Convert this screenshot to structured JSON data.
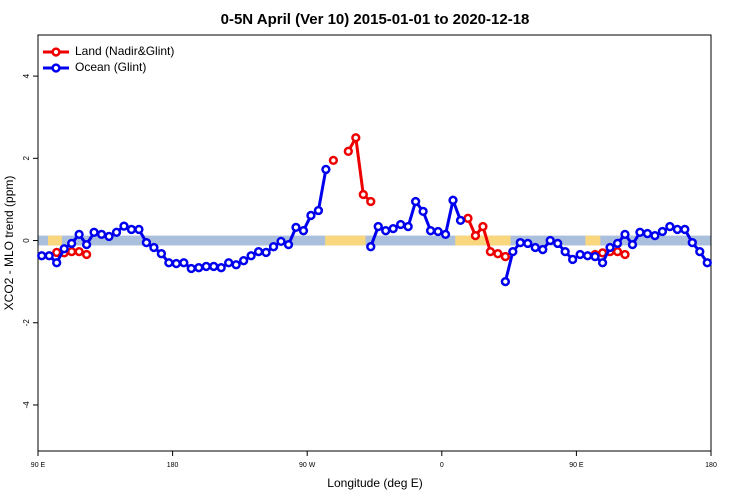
{
  "chart_data": {
    "type": "line",
    "title": "0-5N April (Ver 10)   2015-01-01 to 2020-12-18",
    "x_label": "Longitude (deg E)",
    "y_label": "XCO2 - MLO trend (ppm)",
    "xlim": [
      90,
      540
    ],
    "ylim": [
      -5.12,
      5.0
    ],
    "xticks": [
      {
        "value": 90,
        "label": "90 E"
      },
      180,
      {
        "value": 270,
        "label": "90 W"
      },
      {
        "value": 360,
        "label": "0"
      },
      {
        "value": 450,
        "label": "90 E"
      },
      {
        "value": 540,
        "label": "180"
      }
    ],
    "yticks": [
      -4,
      -2,
      0,
      2,
      4
    ],
    "legend": "top-left",
    "band": {
      "ylim": [
        -0.12,
        0.12
      ],
      "color": "#a9bfdc",
      "land_color": "#f9d77e",
      "land_x": [
        [
          96.7,
          106
        ],
        [
          282,
          309
        ],
        [
          369,
          406
        ],
        [
          456,
          466
        ]
      ]
    },
    "x": [
      92.5,
      97.5,
      102.5,
      107.5,
      112.5,
      117.5,
      122.5,
      127.5,
      132.5,
      137.5,
      142.5,
      147.5,
      152.5,
      157.5,
      162.5,
      167.5,
      172.5,
      177.5,
      182.5,
      187.5,
      192.5,
      197.5,
      202.5,
      207.5,
      212.5,
      217.5,
      222.5,
      227.5,
      232.5,
      237.5,
      242.5,
      247.5,
      252.5,
      257.5,
      262.5,
      267.5,
      272.5,
      277.5,
      282.5,
      287.5,
      292.5,
      297.5,
      302.5,
      307.5,
      312.5,
      317.5,
      322.5,
      327.5,
      332.5,
      337.5,
      342.5,
      347.5,
      352.5,
      357.5,
      362.5,
      367.5,
      372.5,
      377.5,
      382.5,
      387.5,
      392.5,
      397.5,
      402.5,
      407.5,
      412.5,
      417.5,
      422.5,
      427.5,
      432.5,
      437.5,
      442.5,
      447.5,
      452.5,
      457.5,
      462.5,
      467.5,
      472.5,
      477.5,
      482.5,
      487.5,
      492.5,
      497.5,
      502.5,
      507.5,
      512.5,
      517.5,
      522.5,
      527.5,
      532.5,
      537.5
    ],
    "series": [
      {
        "name": "Land (Nadir&Glint)",
        "color": "#ee0000",
        "values": [
          null,
          null,
          -0.29,
          -0.3,
          -0.27,
          -0.27,
          -0.34,
          null,
          null,
          null,
          null,
          null,
          null,
          null,
          null,
          null,
          null,
          null,
          null,
          null,
          null,
          null,
          null,
          null,
          null,
          null,
          null,
          null,
          null,
          null,
          null,
          null,
          null,
          null,
          null,
          null,
          null,
          null,
          null,
          1.95,
          null,
          2.17,
          2.5,
          1.12,
          0.95,
          null,
          null,
          null,
          null,
          null,
          null,
          null,
          null,
          null,
          null,
          null,
          null,
          0.54,
          0.12,
          0.34,
          -0.27,
          -0.32,
          -0.39,
          null,
          null,
          null,
          null,
          null,
          null,
          null,
          null,
          null,
          null,
          null,
          -0.34,
          -0.3,
          -0.27,
          -0.27,
          -0.34,
          null,
          null,
          null,
          null,
          null,
          null,
          null,
          null,
          null,
          null,
          null
        ]
      },
      {
        "name": "Ocean (Glint)",
        "color": "#0000ee",
        "values": [
          -0.37,
          -0.37,
          -0.54,
          -0.2,
          -0.07,
          0.15,
          -0.1,
          0.2,
          0.15,
          0.1,
          0.2,
          0.35,
          0.27,
          0.27,
          -0.05,
          -0.17,
          -0.32,
          -0.54,
          -0.56,
          -0.54,
          -0.68,
          -0.66,
          -0.63,
          -0.63,
          -0.66,
          -0.54,
          -0.59,
          -0.49,
          -0.37,
          -0.27,
          -0.29,
          -0.15,
          -0.02,
          -0.1,
          0.32,
          0.24,
          0.61,
          0.73,
          1.73,
          null,
          null,
          null,
          null,
          null,
          -0.15,
          0.34,
          0.24,
          0.29,
          0.39,
          0.34,
          0.95,
          0.71,
          0.24,
          0.22,
          0.15,
          0.98,
          0.49,
          null,
          null,
          null,
          null,
          null,
          -1.0,
          -0.27,
          -0.05,
          -0.07,
          -0.17,
          -0.22,
          0.0,
          -0.07,
          -0.27,
          -0.46,
          -0.34,
          -0.37,
          -0.39,
          -0.54,
          -0.17,
          -0.07,
          0.15,
          -0.1,
          0.2,
          0.17,
          0.12,
          0.22,
          0.34,
          0.27,
          0.27,
          -0.05,
          -0.27,
          -0.54
        ]
      }
    ]
  }
}
